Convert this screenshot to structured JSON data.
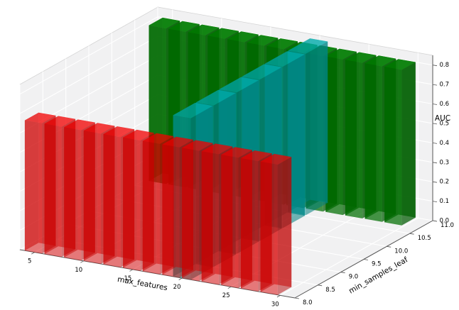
{
  "page": {
    "background": "#ffffff"
  },
  "chart_data": {
    "type": "bar",
    "subtype": "bar3d",
    "title": "",
    "xlabel": "max_features",
    "ylabel": "min_samples_leaf",
    "zlabel": "AUC",
    "xlim": [
      3.5,
      31.5
    ],
    "ylim": [
      8.0,
      11.0
    ],
    "zlim": [
      0.0,
      0.85
    ],
    "grid": true,
    "legend": "none",
    "xticks": {
      "values": [
        5,
        10,
        15,
        20,
        25,
        30
      ],
      "labels": [
        "5",
        "10",
        "15",
        "20",
        "25",
        "30"
      ]
    },
    "yticks": {
      "values": [
        8.0,
        8.5,
        9.0,
        9.5,
        10.0,
        10.5,
        11.0
      ],
      "labels": [
        "8.0",
        "8.5",
        "9.0",
        "9.5",
        "10.0",
        "10.5",
        "11.0"
      ]
    },
    "zticks": {
      "values": [
        0.0,
        0.1,
        0.2,
        0.3,
        0.4,
        0.5,
        0.6,
        0.7,
        0.8
      ],
      "labels": [
        "0.0",
        "0.1",
        "0.2",
        "0.3",
        "0.4",
        "0.5",
        "0.6",
        "0.7",
        "0.8"
      ]
    },
    "series": [
      {
        "id": "green",
        "orientation": "along_x",
        "color": "#008000",
        "alpha": 0.72,
        "y": 10.7,
        "dy": 0.3,
        "dx": 1.75,
        "x_values": [
          4,
          6,
          8,
          10,
          12,
          14,
          16,
          18,
          20,
          22,
          24,
          26,
          28
        ],
        "auc_values": [
          0.8,
          0.8,
          0.8,
          0.8,
          0.8,
          0.8,
          0.8,
          0.8,
          0.8,
          0.8,
          0.8,
          0.8,
          0.8
        ]
      },
      {
        "id": "cyan",
        "orientation": "along_y",
        "color": "#00b2b2",
        "alpha": 0.55,
        "x": 19.1,
        "dx": 1.8,
        "dy": 0.48,
        "y_values": [
          8.0,
          8.5,
          9.0,
          9.5,
          10.0,
          10.5
        ],
        "auc_values": [
          0.83,
          0.83,
          0.83,
          0.83,
          0.83,
          0.83
        ]
      },
      {
        "id": "red",
        "orientation": "along_x",
        "color": "#ff0000",
        "alpha": 0.5,
        "y": 8.0,
        "dy": 0.3,
        "dx": 1.75,
        "x_values": [
          4,
          6,
          8,
          10,
          12,
          14,
          16,
          18,
          20,
          22,
          24,
          26,
          28
        ],
        "auc_values": [
          0.67,
          0.67,
          0.67,
          0.67,
          0.67,
          0.67,
          0.67,
          0.67,
          0.67,
          0.67,
          0.67,
          0.67,
          0.67
        ]
      }
    ],
    "style": {
      "pane_color": "#f1f1f2",
      "grid_color": "#ffffff",
      "pane_edge_color": "#d5d5d5",
      "axis_line_color": "#555555",
      "tick_color": "#555555",
      "text_color": "#000000"
    }
  }
}
